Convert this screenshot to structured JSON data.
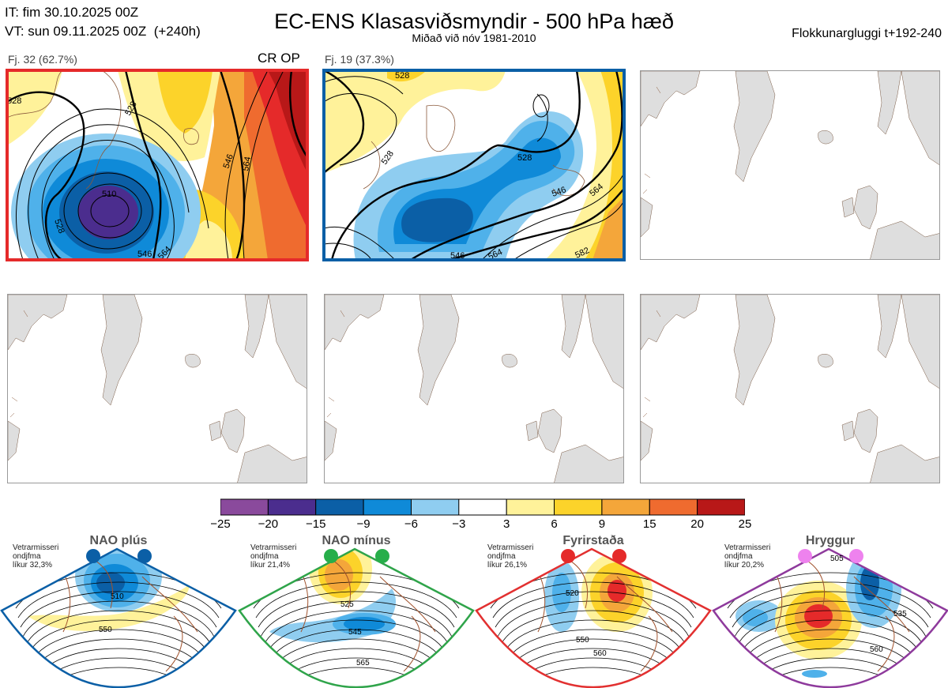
{
  "header": {
    "it_line": "IT: fim 30.10.2025 00Z",
    "vt_line": "VT: sun 09.11.2025 00Z  (+240h)",
    "title": "EC-ENS Klasasviðsmyndir - 500 hPa hæð",
    "subtitle": "Miðað við nóv 1981-2010",
    "window": "Flokkunargluggi t+192-240"
  },
  "panels": [
    {
      "label": "Fj. 32 (62.7%)",
      "tag": "CR OP",
      "frame_color": "#e52a2a"
    },
    {
      "label": "Fj. 19 (37.3%)",
      "tag": "",
      "frame_color": "#0b5fa6"
    }
  ],
  "contour_labels": {
    "p1": [
      "528",
      "528",
      "510",
      "528",
      "546",
      "564",
      "546",
      "564"
    ],
    "p2": [
      "528",
      "528",
      "528",
      "546",
      "564",
      "546",
      "564",
      "582"
    ]
  },
  "legend": {
    "ticks": [
      "−25",
      "−20",
      "−15",
      "−9",
      "−6",
      "−3",
      "3",
      "6",
      "9",
      "15",
      "20",
      "25"
    ],
    "colors": [
      "#8a4a9c",
      "#4b2d8e",
      "#0b5fa6",
      "#0f8ad8",
      "#4fb1ea",
      "#8fcdf0",
      "#ffffff",
      "#fff29a",
      "#fcd32a",
      "#f4a63a",
      "#ef6b2f",
      "#e52a2a",
      "#b81818"
    ]
  },
  "regimes": [
    {
      "title": "NAO plús",
      "note": [
        "Vetrarmisseri",
        "ondjfma",
        "líkur 32,3%"
      ],
      "dot_color": "#0b5fa6",
      "border": "#0b5fa6",
      "contours": [
        "510",
        "550"
      ]
    },
    {
      "title": "NAO mínus",
      "note": [
        "Vetrarmisseri",
        "ondjfma",
        "líkur 21,4%"
      ],
      "dot_color": "#27ae4a",
      "border": "#2fa44a",
      "contours": [
        "525",
        "545",
        "565"
      ]
    },
    {
      "title": "Fyrirstaða",
      "note": [
        "Vetrarmisseri",
        "ondjfma",
        "líkur 26,1%"
      ],
      "dot_color": "#e52a2a",
      "border": "#e23030",
      "contours": [
        "520",
        "550",
        "560"
      ]
    },
    {
      "title": "Hryggur",
      "note": [
        "Vetrarmisseri",
        "ondjfma",
        "líkur 20,2%"
      ],
      "dot_color": "#ee82ee",
      "border": "#8e3a9c",
      "contours": [
        "505",
        "535",
        "560"
      ]
    }
  ]
}
